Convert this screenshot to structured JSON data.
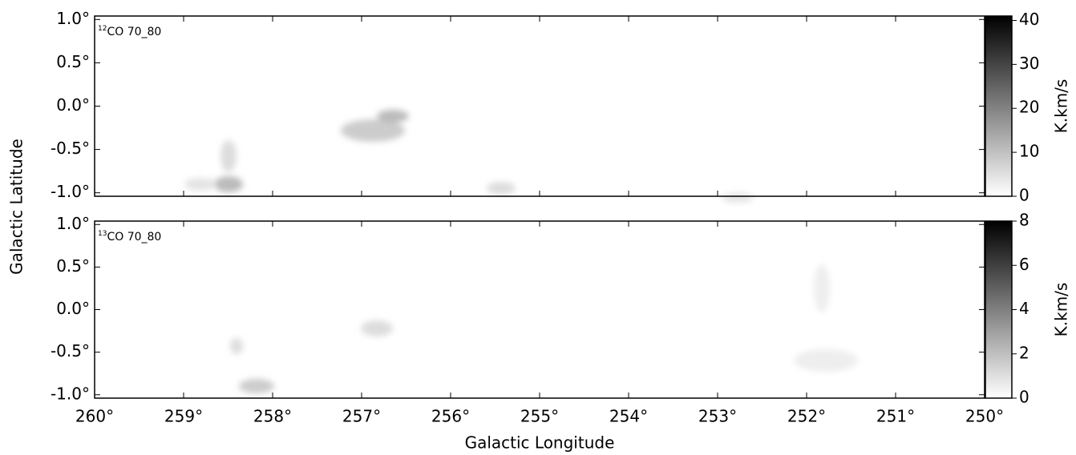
{
  "chart_data": [
    {
      "type": "image",
      "label_sup": "12",
      "label": "CO 70_80",
      "xlim": [
        260,
        250
      ],
      "xticks": [
        260,
        259,
        258,
        257,
        256,
        255,
        254,
        253,
        252,
        251,
        250
      ],
      "ylim": [
        -1.04,
        1.04
      ],
      "yticks": [
        {
          "value": -1.0,
          "label": "-1.0°"
        },
        {
          "value": -0.5,
          "label": "-0.5°"
        },
        {
          "value": 0.0,
          "label": "0.0°"
        },
        {
          "value": 0.5,
          "label": "0.5°"
        },
        {
          "value": 1.0,
          "label": "1.0°"
        }
      ],
      "colorbar": {
        "label": "K.km/s",
        "lim": [
          0,
          41
        ],
        "ticks": [
          0,
          10,
          20,
          30,
          40
        ]
      }
    },
    {
      "type": "image",
      "label_sup": "13",
      "label": "CO 70_80",
      "xlim": [
        260,
        250
      ],
      "xticks": [
        {
          "value": 260,
          "label": "260°"
        },
        {
          "value": 259,
          "label": "259°"
        },
        {
          "value": 258,
          "label": "258°"
        },
        {
          "value": 257,
          "label": "257°"
        },
        {
          "value": 256,
          "label": "256°"
        },
        {
          "value": 255,
          "label": "255°"
        },
        {
          "value": 254,
          "label": "254°"
        },
        {
          "value": 253,
          "label": "253°"
        },
        {
          "value": 252,
          "label": "252°"
        },
        {
          "value": 251,
          "label": "251°"
        },
        {
          "value": 250,
          "label": "250°"
        }
      ],
      "ylim": [
        -1.04,
        1.04
      ],
      "yticks": [
        {
          "value": -1.0,
          "label": "-1.0°"
        },
        {
          "value": -0.5,
          "label": "-0.5°"
        },
        {
          "value": 0.0,
          "label": "0.0°"
        },
        {
          "value": 0.5,
          "label": "0.5°"
        },
        {
          "value": 1.0,
          "label": "1.0°"
        }
      ],
      "colorbar": {
        "label": "K.km/s",
        "lim": [
          0,
          8
        ],
        "ticks": [
          0,
          2,
          4,
          6,
          8
        ]
      }
    }
  ],
  "xlabel": "Galactic Longitude",
  "ylabel": "Galactic Latitude"
}
